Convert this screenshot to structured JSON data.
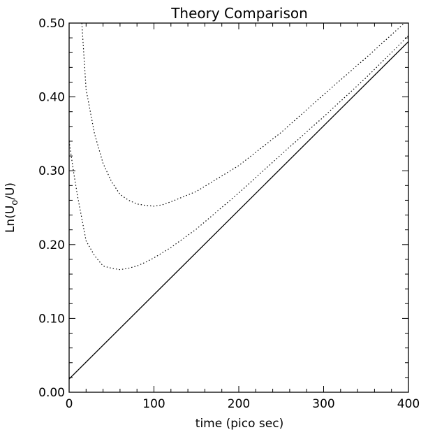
{
  "chart_data": {
    "type": "line",
    "title": "Theory Comparison",
    "xlabel": "time (pico sec)",
    "ylabel": "Ln(U₀/U)",
    "ylabel_parts": {
      "before": "Ln(U",
      "sub": "o",
      "after": "/U)"
    },
    "xlim": [
      0,
      400
    ],
    "ylim": [
      0,
      0.5
    ],
    "x_ticks": [
      0,
      100,
      200,
      300,
      400
    ],
    "x_tick_labels": [
      "0",
      "100",
      "200",
      "300",
      "400"
    ],
    "y_ticks": [
      0,
      0.1,
      0.2,
      0.3,
      0.4,
      0.5
    ],
    "y_tick_labels": [
      "0.00",
      "0.10",
      "0.20",
      "0.30",
      "0.40",
      "0.50"
    ],
    "grid": false,
    "legend": "none",
    "series": [
      {
        "style": "solid",
        "x": [
          0,
          400
        ],
        "y": [
          0.018,
          0.475
        ]
      },
      {
        "style": "dotted",
        "x": [
          0,
          5,
          10,
          20,
          30,
          40,
          50,
          60,
          70,
          80,
          90,
          100,
          120,
          150,
          200,
          250,
          300,
          350,
          400
        ],
        "y": [
          0.34,
          0.3,
          0.265,
          0.205,
          0.185,
          0.171,
          0.168,
          0.166,
          0.168,
          0.171,
          0.176,
          0.182,
          0.196,
          0.221,
          0.27,
          0.322,
          0.373,
          0.426,
          0.483
        ]
      },
      {
        "style": "dotted",
        "x": [
          15,
          20,
          30,
          40,
          50,
          60,
          70,
          80,
          90,
          100,
          110,
          120,
          150,
          200,
          250,
          300,
          350,
          400
        ],
        "y": [
          0.5,
          0.41,
          0.35,
          0.31,
          0.285,
          0.268,
          0.26,
          0.255,
          0.253,
          0.252,
          0.254,
          0.258,
          0.272,
          0.307,
          0.352,
          0.403,
          0.453,
          0.505
        ]
      }
    ]
  }
}
